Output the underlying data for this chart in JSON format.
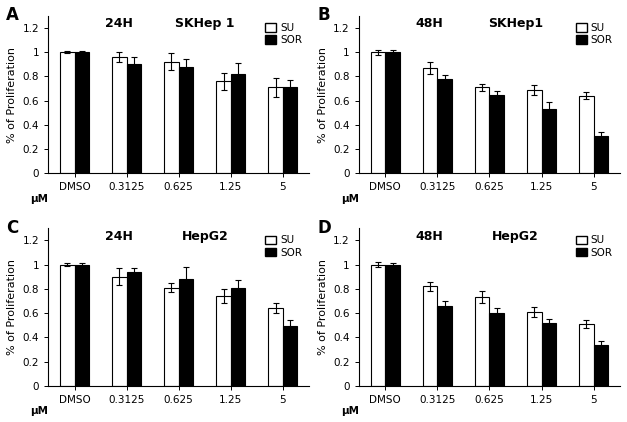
{
  "panels": [
    {
      "label": "A",
      "time": "24H",
      "cell_line": "SKHep 1",
      "categories": [
        "DMSO",
        "0.3125",
        "0.625",
        "1.25",
        "5"
      ],
      "SU_values": [
        1.0,
        0.96,
        0.92,
        0.76,
        0.71
      ],
      "SOR_values": [
        1.0,
        0.9,
        0.88,
        0.82,
        0.71
      ],
      "SU_errors": [
        0.01,
        0.04,
        0.07,
        0.07,
        0.08
      ],
      "SOR_errors": [
        0.01,
        0.06,
        0.06,
        0.09,
        0.06
      ]
    },
    {
      "label": "B",
      "time": "48H",
      "cell_line": "SKHep1",
      "categories": [
        "DMSO",
        "0.3125",
        "0.625",
        "1.25",
        "5"
      ],
      "SU_values": [
        1.0,
        0.87,
        0.71,
        0.69,
        0.64
      ],
      "SOR_values": [
        1.0,
        0.78,
        0.65,
        0.53,
        0.31
      ],
      "SU_errors": [
        0.02,
        0.05,
        0.03,
        0.04,
        0.03
      ],
      "SOR_errors": [
        0.02,
        0.03,
        0.03,
        0.06,
        0.03
      ]
    },
    {
      "label": "C",
      "time": "24H",
      "cell_line": "HepG2",
      "categories": [
        "DMSO",
        "0.3125",
        "0.625",
        "1.25",
        "5"
      ],
      "SU_values": [
        1.0,
        0.9,
        0.81,
        0.74,
        0.64
      ],
      "SOR_values": [
        1.0,
        0.94,
        0.88,
        0.81,
        0.49
      ],
      "SU_errors": [
        0.01,
        0.07,
        0.04,
        0.06,
        0.04
      ],
      "SOR_errors": [
        0.01,
        0.03,
        0.1,
        0.06,
        0.05
      ]
    },
    {
      "label": "D",
      "time": "48H",
      "cell_line": "HepG2",
      "categories": [
        "DMSO",
        "0.3125",
        "0.625",
        "1.25",
        "5"
      ],
      "SU_values": [
        1.0,
        0.82,
        0.73,
        0.61,
        0.51
      ],
      "SOR_values": [
        1.0,
        0.66,
        0.6,
        0.52,
        0.34
      ],
      "SU_errors": [
        0.02,
        0.04,
        0.05,
        0.04,
        0.03
      ],
      "SOR_errors": [
        0.01,
        0.04,
        0.04,
        0.03,
        0.03
      ]
    }
  ],
  "ylabel": "% of Proliferation",
  "mu_label": "μM",
  "ylim": [
    0,
    1.3
  ],
  "yticks": [
    0,
    0.2,
    0.4,
    0.6,
    0.8,
    1.0,
    1.2
  ],
  "ytick_labels": [
    "0",
    "0.2",
    "0.4",
    "0.6",
    "0.8",
    "1",
    "1.2"
  ],
  "bar_width": 0.28,
  "SU_color": "white",
  "SOR_color": "black",
  "edgecolor": "black",
  "tick_fontsize": 7.5,
  "axis_label_fontsize": 8,
  "panel_label_fontsize": 12,
  "inplot_label_fontsize": 9,
  "legend_fontsize": 7.5
}
